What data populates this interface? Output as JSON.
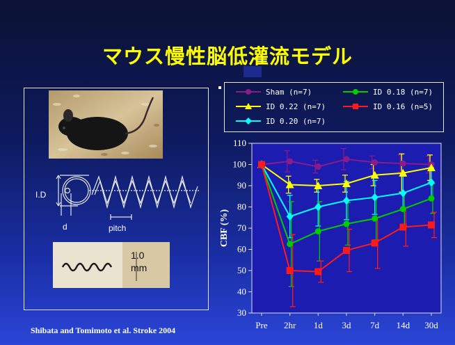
{
  "slide": {
    "title": "マウス慢性脳低灌流モデル",
    "citation": "Shibata and Tomimoto et al. Stroke 2004"
  },
  "diagram": {
    "id_label": "I.D",
    "d_label": "d",
    "pitch_label": "pitch",
    "scale_value": "1.0",
    "scale_unit": "mm"
  },
  "colors": {
    "sham": "#8b1a8b",
    "id022": "#ffff00",
    "id020": "#00ffff",
    "id018": "#00cc00",
    "id016": "#ff1a1a",
    "background": "#1a2a9a",
    "title": "#ffff00"
  },
  "chart_data": {
    "type": "line",
    "ylabel": "CBF (%)",
    "xlabel": "",
    "categories": [
      "Pre",
      "2hr",
      "1d",
      "3d",
      "7d",
      "14d",
      "30d"
    ],
    "ylim": [
      30,
      110
    ],
    "yticks": [
      30,
      40,
      50,
      60,
      70,
      80,
      90,
      100,
      110
    ],
    "legend_position": "top",
    "series": [
      {
        "name": "Sham (n=7)",
        "color": "#8b1a8b",
        "marker": "circle",
        "values": [
          100,
          101.5,
          99,
          102.5,
          101,
          100.5,
          100
        ],
        "errors": [
          0,
          5,
          3,
          5,
          3,
          4,
          4
        ]
      },
      {
        "name": "ID 0.22 (n=7)",
        "color": "#ffff00",
        "marker": "triangle",
        "values": [
          100,
          90.5,
          90,
          91,
          95,
          96,
          98.5
        ],
        "errors": [
          0,
          4,
          3,
          4,
          5,
          9,
          6
        ]
      },
      {
        "name": "ID 0.20 (n=7)",
        "color": "#00ffff",
        "marker": "diamond",
        "values": [
          100,
          75.5,
          80,
          83,
          84.5,
          86.5,
          91.5
        ],
        "errors": [
          0,
          10,
          9,
          9,
          8,
          8,
          7
        ]
      },
      {
        "name": "ID 0.18 (n=7)",
        "color": "#00cc00",
        "marker": "circle",
        "values": [
          100,
          62.5,
          68.5,
          72,
          74.5,
          79,
          84
        ],
        "errors": [
          0,
          20,
          14,
          10,
          10,
          8,
          7
        ]
      },
      {
        "name": "ID 0.16 (n=5)",
        "color": "#ff1a1a",
        "marker": "square",
        "values": [
          100,
          50,
          49.5,
          59.5,
          63,
          70.5,
          71.5
        ],
        "errors": [
          0,
          17,
          5,
          10,
          12,
          9,
          6
        ]
      }
    ]
  }
}
